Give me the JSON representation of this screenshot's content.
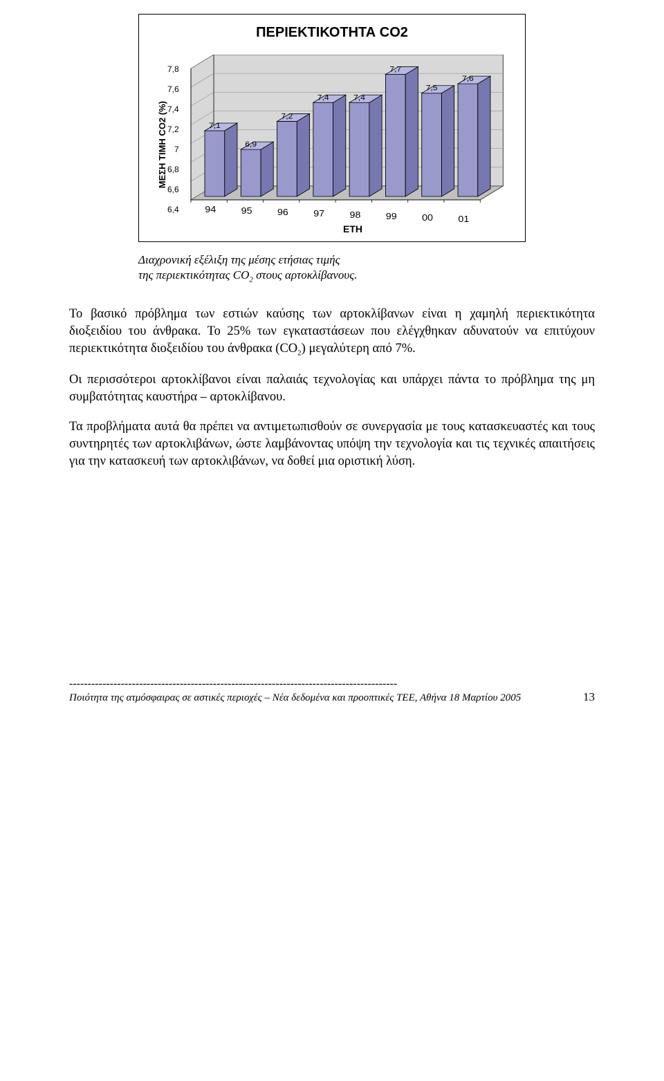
{
  "chart": {
    "title": "ΠΕΡΙΕΚΤΙΚΟΤΗΤΑ CO2",
    "y_label": "ΜΕΣΗ ΤΙΜΗ CO2 (%)",
    "x_label": "ΕΤΗ",
    "type": "bar-3d",
    "y_ticks": [
      "7,8",
      "7,6",
      "7,4",
      "7,2",
      "7",
      "6,8",
      "6,6",
      "6,4"
    ],
    "ylim": [
      6.4,
      7.8
    ],
    "categories": [
      "94",
      "95",
      "96",
      "97",
      "98",
      "99",
      "00",
      "01"
    ],
    "values": [
      7.1,
      6.9,
      7.2,
      7.4,
      7.4,
      7.7,
      7.5,
      7.6
    ],
    "value_labels": [
      "7,1",
      "6,9",
      "7,2",
      "7,4",
      "7,4",
      "7,7",
      "7,5",
      "7,6"
    ],
    "bar_face_color": "#9999cc",
    "bar_top_color": "#b8b8e0",
    "bar_side_color": "#7878b0",
    "bar_border_color": "#000000",
    "floor_color": "#c0c0c0",
    "wall_color": "#d8d8d8",
    "gridline_color": "#808080",
    "label_fontsize": 11,
    "title_fontsize": 20
  },
  "caption_line1": "Διαχρονική εξέλιξη της μέσης ετήσιας τιμής",
  "caption_line2_a": "της περιεκτικότητας CO",
  "caption_line2_sub": "2",
  "caption_line2_b": " στους αρτοκλίβανους.",
  "para1_a": "Το βασικό πρόβλημα των εστιών καύσης των αρτοκλίβανων είναι η χαμηλή περιεκτικότητα διοξειδίου του άνθρακα. Το 25% των εγκαταστάσεων που ελέγχθηκαν αδυνατούν να επιτύχουν περιεκτικότητα διοξειδίου του άνθρακα (CO",
  "para1_sub": "2",
  "para1_b": ") μεγαλύτερη από 7%.",
  "para2": "Οι περισσότεροι αρτοκλίβανοι είναι παλαιάς τεχνολογίας και υπάρχει πάντα το πρόβλημα της μη συμβατότητας καυστήρα – αρτοκλίβανου.",
  "para3": "Τα προβλήματα αυτά θα πρέπει να αντιμετωπισθούν σε συνεργασία με τους κατασκευαστές και τους συντηρητές των αρτοκλιβάνων, ώστε λαμβάνοντας υπόψη την τεχνολογία και τις τεχνικές απαιτήσεις για την κατασκευή των αρτοκλιβάνων, να δοθεί μια οριστική λύση.",
  "footer_dashes": "-----------------------------------------------------------------------------------------",
  "footer_text": "Ποιότητα της ατμόσφαιρας σε αστικές περιοχές – Νέα δεδομένα και προοπτικές ΤΕΕ, Αθήνα 18 Μαρτίου 2005",
  "footer_page": "13"
}
